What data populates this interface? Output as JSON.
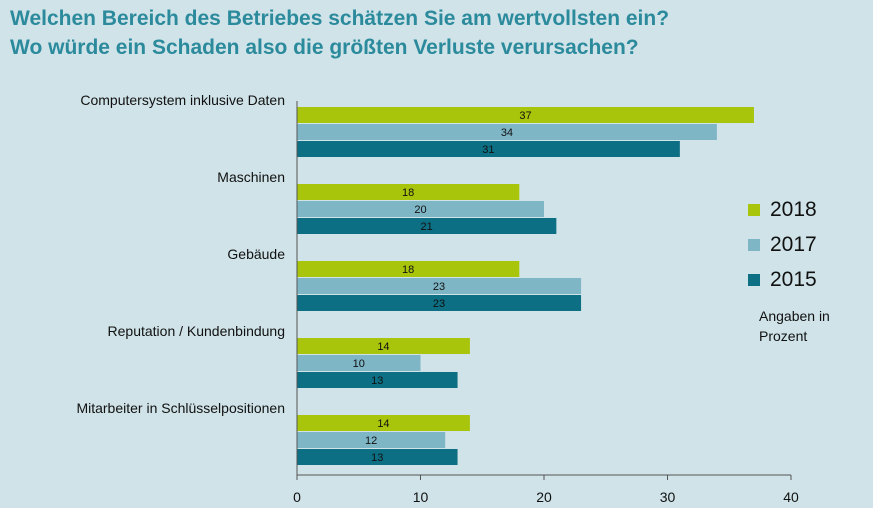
{
  "title_line1": "Welchen Bereich des Betriebes schätzen Sie am wertvollsten ein?",
  "title_line2": "Wo würde ein Schaden also die größten Verluste verursachen?",
  "note": "Angaben in Prozent",
  "colors": {
    "title": "#2b8a9c",
    "background": "#cfe3e8"
  },
  "chart_data": {
    "type": "bar",
    "orientation": "horizontal",
    "categories": [
      "Computersystem inklusive Daten",
      "Maschinen",
      "Gebäude",
      "Reputation / Kundenbindung",
      "Mitarbeiter in Schlüsselpositionen"
    ],
    "series": [
      {
        "name": "2018",
        "color": "#a8c50b",
        "values": [
          37,
          18,
          18,
          14,
          14
        ]
      },
      {
        "name": "2017",
        "color": "#7fb6c6",
        "values": [
          34,
          20,
          23,
          10,
          12
        ]
      },
      {
        "name": "2015",
        "color": "#0d6f84",
        "values": [
          31,
          21,
          23,
          13,
          13
        ]
      }
    ],
    "xlim": [
      0,
      40
    ],
    "xticks": [
      0,
      10,
      20,
      30,
      40
    ],
    "legend_position": "right",
    "grid": false
  }
}
